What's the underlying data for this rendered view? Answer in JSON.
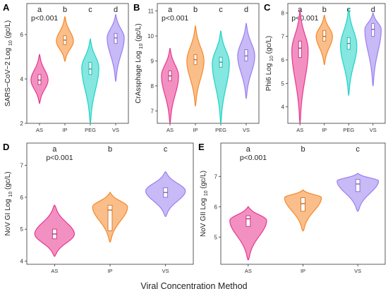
{
  "xlabel": "Viral Concentration Method",
  "colors": {
    "AS": "#e8368e",
    "IP": "#f6892a",
    "PEG": "#1fd3c6",
    "VS": "#9b7ff0"
  },
  "chart_data": [
    {
      "type": "violin",
      "panel": "A",
      "ylabel": "SARS-CoV-2 Log 10 (gc/L)",
      "ylabel_main": "SARS−CoV−2 Log",
      "ylabel_sub": "10",
      "ylabel_unit": "(gc/L)",
      "categories": [
        "AS",
        "IP",
        "PEG",
        "VS"
      ],
      "ylim": [
        2,
        7.4
      ],
      "yticks": [
        2,
        4,
        6
      ],
      "pvalue": "p<0.001",
      "groups": [
        "a",
        "b",
        "c",
        "d"
      ],
      "series": [
        {
          "category": "AS",
          "min": 2.9,
          "max": 5.1,
          "q1": 3.75,
          "median": 3.95,
          "q3": 4.2,
          "peak": 3.95,
          "width": 0.8
        },
        {
          "category": "IP",
          "min": 4.8,
          "max": 6.8,
          "q1": 5.55,
          "median": 5.75,
          "q3": 5.95,
          "peak": 5.7,
          "width": 0.8
        },
        {
          "category": "PEG",
          "min": 2.0,
          "max": 5.8,
          "q1": 4.2,
          "median": 4.45,
          "q3": 4.75,
          "peak": 4.5,
          "width": 0.8
        },
        {
          "category": "VS",
          "min": 3.9,
          "max": 6.9,
          "q1": 5.6,
          "median": 5.85,
          "q3": 6.05,
          "peak": 5.85,
          "width": 0.8
        }
      ]
    },
    {
      "type": "violin",
      "panel": "B",
      "ylabel": "CrAssphage Log 10 (gc/L)",
      "ylabel_main": "CrAssphage Log",
      "ylabel_sub": "10",
      "ylabel_unit": "(gc/L)",
      "categories": [
        "AS",
        "IP",
        "PEG",
        "VS"
      ],
      "ylim": [
        6.5,
        11.3
      ],
      "yticks": [
        7,
        8,
        9,
        10,
        11
      ],
      "pvalue": "p<0.001",
      "groups": [
        "a",
        "b",
        "c",
        "d"
      ],
      "series": [
        {
          "category": "AS",
          "min": 6.5,
          "max": 9.5,
          "q1": 8.2,
          "median": 8.4,
          "q3": 8.6,
          "peak": 8.4,
          "width": 0.8
        },
        {
          "category": "IP",
          "min": 7.2,
          "max": 10.4,
          "q1": 8.85,
          "median": 9.05,
          "q3": 9.25,
          "peak": 9.0,
          "width": 0.8
        },
        {
          "category": "PEG",
          "min": 6.5,
          "max": 10.2,
          "q1": 8.75,
          "median": 8.95,
          "q3": 9.15,
          "peak": 8.9,
          "width": 0.8
        },
        {
          "category": "VS",
          "min": 7.5,
          "max": 10.5,
          "q1": 9.0,
          "median": 9.2,
          "q3": 9.45,
          "peak": 9.2,
          "width": 0.8
        }
      ]
    },
    {
      "type": "violin",
      "panel": "C",
      "ylabel": "Phi6 Log 10 (gc/L)",
      "ylabel_main": "Phi6 Log",
      "ylabel_sub": "10",
      "ylabel_unit": "(gc/L)",
      "categories": [
        "AS",
        "IP",
        "PEG",
        "VS"
      ],
      "ylim": [
        3.3,
        8.4
      ],
      "yticks": [
        4,
        5,
        6,
        7,
        8
      ],
      "pvalue": "p<0.001",
      "groups": [
        "a",
        "b",
        "c",
        "d"
      ],
      "series": [
        {
          "category": "AS",
          "min": 3.3,
          "max": 8.1,
          "q1": 6.1,
          "median": 6.5,
          "q3": 6.8,
          "peak": 6.4,
          "width": 0.8
        },
        {
          "category": "IP",
          "min": 5.8,
          "max": 7.9,
          "q1": 6.8,
          "median": 7.0,
          "q3": 7.25,
          "peak": 7.0,
          "width": 0.8
        },
        {
          "category": "PEG",
          "min": 4.5,
          "max": 8.2,
          "q1": 6.45,
          "median": 6.7,
          "q3": 6.95,
          "peak": 6.6,
          "width": 0.8
        },
        {
          "category": "VS",
          "min": 4.9,
          "max": 8.0,
          "q1": 7.0,
          "median": 7.3,
          "q3": 7.55,
          "peak": 7.3,
          "width": 0.8
        }
      ]
    },
    {
      "type": "violin",
      "panel": "D",
      "ylabel": "NoV GI Log 10 (gc/L)",
      "ylabel_main": "NoV GI Log",
      "ylabel_sub": "10",
      "ylabel_unit": "(gc/L)",
      "categories": [
        "AS",
        "IP",
        "VS"
      ],
      "ylim": [
        3.9,
        7.7
      ],
      "yticks": [
        4,
        5,
        6,
        7
      ],
      "pvalue": "p<0.001",
      "groups": [
        "a",
        "b",
        "c"
      ],
      "series": [
        {
          "category": "AS",
          "min": 4.15,
          "max": 5.75,
          "q1": 4.7,
          "median": 4.85,
          "q3": 5.0,
          "peak": 4.85,
          "width": 0.85
        },
        {
          "category": "IP",
          "min": 4.6,
          "max": 6.15,
          "q1": 4.95,
          "median": 5.6,
          "q3": 5.75,
          "peak": 5.7,
          "width": 0.75
        },
        {
          "category": "VS",
          "min": 5.4,
          "max": 6.8,
          "q1": 6.0,
          "median": 6.15,
          "q3": 6.3,
          "peak": 6.2,
          "width": 0.85
        }
      ]
    },
    {
      "type": "violin",
      "panel": "E",
      "ylabel": "NoV GII Log 10 (gc/L)",
      "ylabel_main": "NoV GII Log",
      "ylabel_sub": "10",
      "ylabel_unit": "(gc/L)",
      "categories": [
        "AS",
        "IP",
        "VS"
      ],
      "ylim": [
        4.1,
        8.1
      ],
      "yticks": [
        5,
        6,
        7
      ],
      "pvalue": "p<0.001",
      "groups": [
        "a",
        "b",
        "c"
      ],
      "series": [
        {
          "category": "AS",
          "min": 4.25,
          "max": 6.0,
          "q1": 5.35,
          "median": 5.6,
          "q3": 5.7,
          "peak": 5.55,
          "width": 0.8
        },
        {
          "category": "IP",
          "min": 5.2,
          "max": 6.55,
          "q1": 5.85,
          "median": 6.1,
          "q3": 6.3,
          "peak": 6.3,
          "width": 0.8
        },
        {
          "category": "VS",
          "min": 5.85,
          "max": 7.1,
          "q1": 6.5,
          "median": 6.75,
          "q3": 6.9,
          "peak": 6.85,
          "width": 0.9
        }
      ]
    }
  ]
}
